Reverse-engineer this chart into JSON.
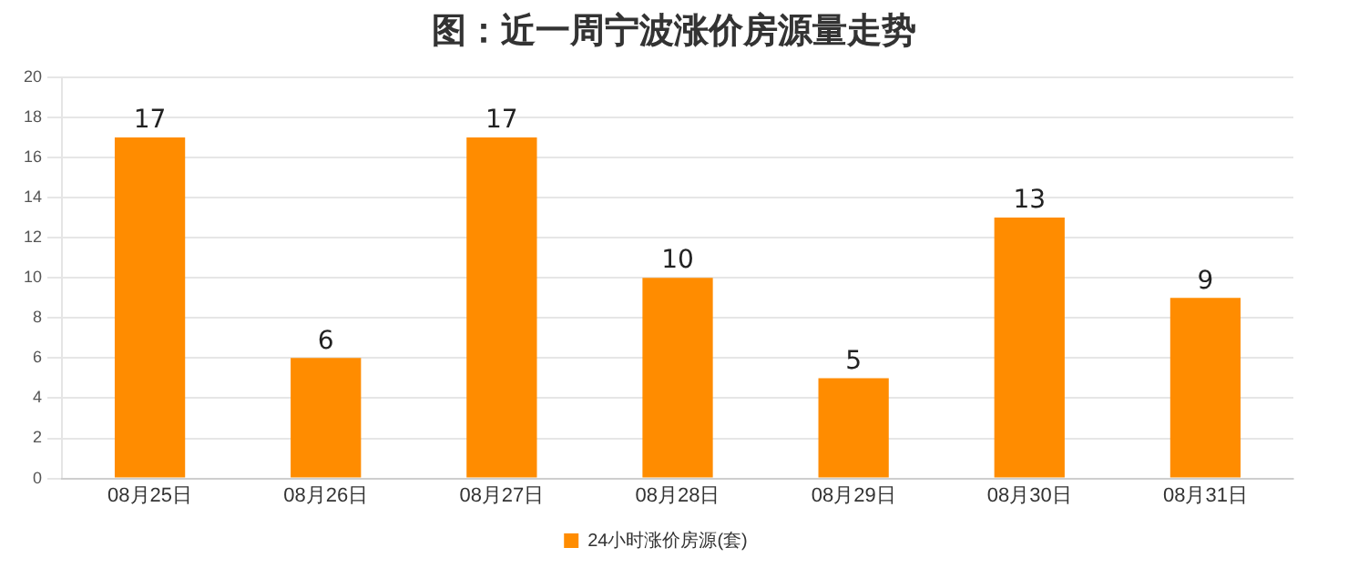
{
  "chart_data": {
    "type": "bar",
    "title": "图：近一周宁波涨价房源量走势",
    "categories": [
      "08月25日",
      "08月26日",
      "08月27日",
      "08月28日",
      "08月29日",
      "08月30日",
      "08月31日"
    ],
    "series": [
      {
        "name": "24小时涨价房源(套)",
        "color": "#ff8c00",
        "values": [
          17,
          6,
          17,
          10,
          5,
          13,
          9
        ]
      }
    ],
    "ylim": [
      0,
      20
    ],
    "yticks": [
      0,
      2,
      4,
      6,
      8,
      10,
      12,
      14,
      16,
      18,
      20
    ],
    "grid": "y",
    "legend": "bottom",
    "data_labels": true
  }
}
